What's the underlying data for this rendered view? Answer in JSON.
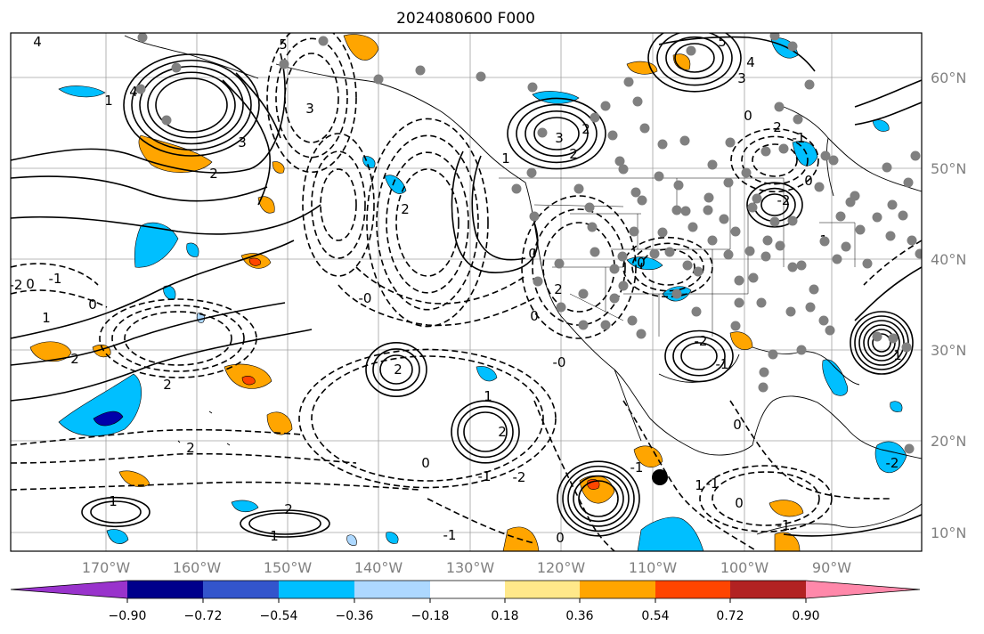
{
  "title": "2024080600 F000",
  "map": {
    "lon_labels": [
      "170°W",
      "160°W",
      "150°W",
      "140°W",
      "130°W",
      "120°W",
      "110°W",
      "100°W",
      "90°W"
    ],
    "lat_labels": [
      "60°N",
      "50°N",
      "40°N",
      "30°N",
      "20°N",
      "10°N"
    ],
    "contour_labels": [
      "4",
      "5",
      "5",
      "4",
      "3",
      "4",
      "3",
      "2",
      "1",
      "3",
      "2",
      "3",
      "2",
      "1",
      "0",
      "-2",
      "-1",
      "0",
      "1",
      "2",
      "2",
      "1",
      "2",
      "0",
      "-0",
      "2",
      "2",
      "2",
      "-1",
      "-2",
      "0",
      "-1",
      "1",
      "2",
      "1",
      "0",
      "-2",
      "1",
      "0",
      "-1",
      "2",
      "0",
      "-1",
      "0",
      "-2",
      "-1",
      "1",
      "-0",
      "2",
      "0",
      "1",
      "-1",
      "0",
      "0",
      "-1",
      "-2"
    ],
    "colors": {
      "neg_strong": "#0000aa",
      "neg_mid": "#00bfff",
      "neg_weak": "#add8ff",
      "pos_weak": "#ffe88a",
      "pos_mid": "#ffa500",
      "pos_strong": "#ff4500",
      "pos_max": "#ff88aa",
      "station": "#808080",
      "marker": "#000000"
    }
  },
  "colorbar": {
    "colors": [
      "#9933cc",
      "#00008b",
      "#3355cc",
      "#00bfff",
      "#add8ff",
      "#ffffff",
      "#ffe88a",
      "#ffa500",
      "#ff4500",
      "#b22222",
      "#ff88aa"
    ],
    "tick_labels": [
      "−0.90",
      "−0.72",
      "−0.54",
      "−0.36",
      "−0.18",
      "0.18",
      "0.36",
      "0.54",
      "0.72",
      "0.90"
    ]
  }
}
